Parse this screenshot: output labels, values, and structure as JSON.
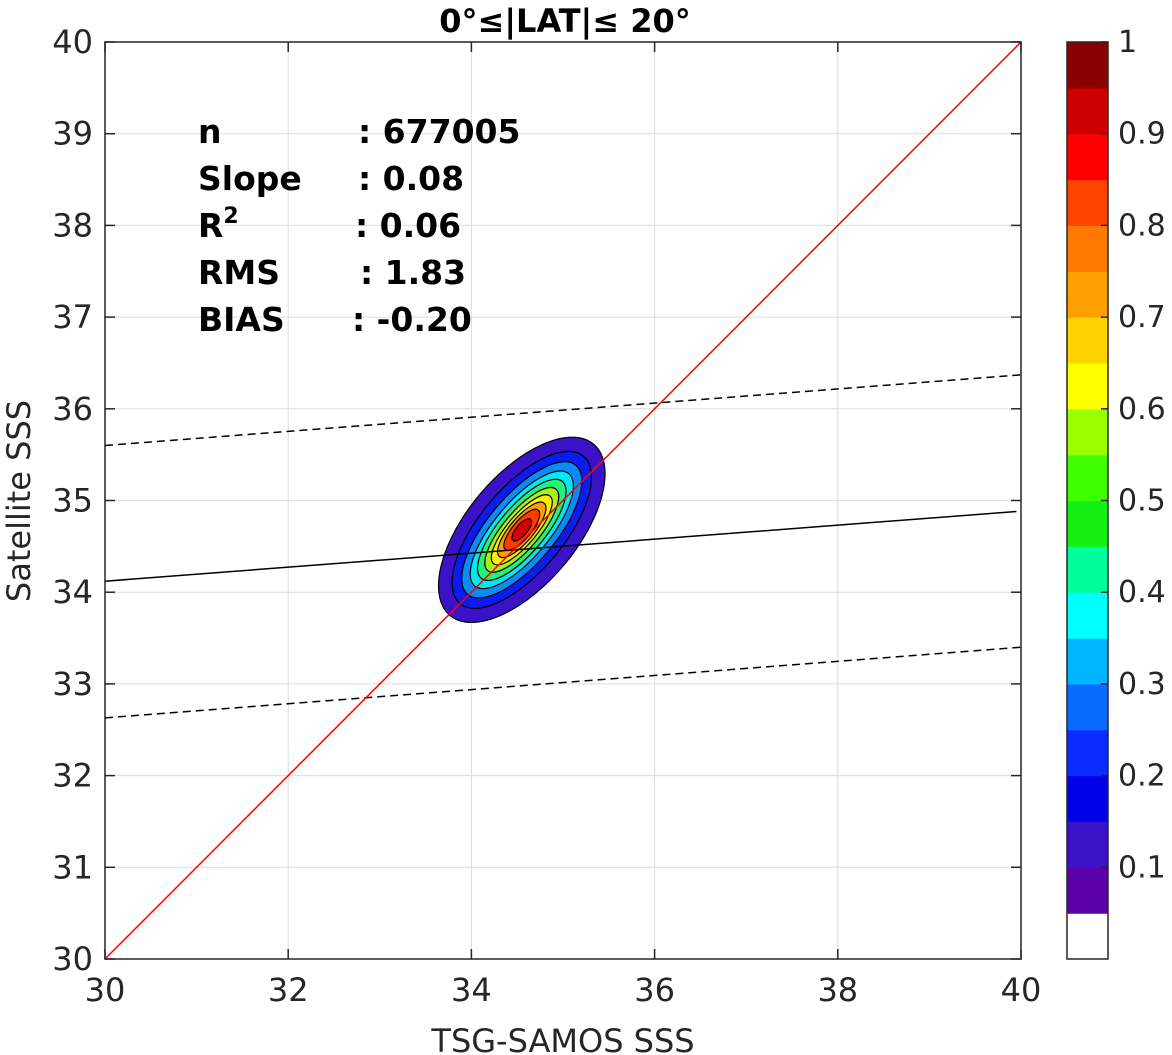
{
  "chart_data": {
    "type": "contour",
    "title": "0°≤|LAT|≤ 20°",
    "xlabel": "TSG-SAMOS SSS",
    "ylabel": "Satellite SSS",
    "xlim": [
      30,
      40
    ],
    "ylim": [
      30,
      40
    ],
    "xticks": [
      "30",
      "32",
      "34",
      "36",
      "38",
      "40"
    ],
    "yticks": [
      "30",
      "31",
      "32",
      "33",
      "34",
      "35",
      "36",
      "37",
      "38",
      "39",
      "40"
    ],
    "grid": true,
    "stats": [
      {
        "label": "n",
        "value": ": 677005"
      },
      {
        "label": "Slope",
        "value": ": 0.08"
      },
      {
        "label": "R",
        "sup": "2",
        "value": ": 0.06"
      },
      {
        "label": "RMS",
        "value": ": 1.83"
      },
      {
        "label": "BIAS",
        "value": ": -0.20"
      }
    ],
    "lines": {
      "one_to_one": {
        "x": [
          30,
          40
        ],
        "y": [
          30,
          40
        ],
        "color": "#ff0000"
      },
      "fit": {
        "x": [
          30,
          39.95
        ],
        "y": [
          34.12,
          34.88
        ],
        "color": "#000000"
      },
      "upper_bound": {
        "x": [
          30,
          40
        ],
        "y": [
          35.6,
          36.37
        ],
        "color": "#000000",
        "dash": true
      },
      "lower_bound": {
        "x": [
          30,
          40
        ],
        "y": [
          32.63,
          33.4
        ],
        "color": "#000000",
        "dash": true
      }
    },
    "density": {
      "center": [
        34.55,
        34.68
      ],
      "rotation_deg": 50,
      "levels": [
        {
          "level": 0.05,
          "color": "#3a12c8",
          "rx": 1.22,
          "ry": 0.6
        },
        {
          "level": 0.15,
          "color": "#0a1cf0",
          "rx": 1.05,
          "ry": 0.46
        },
        {
          "level": 0.25,
          "color": "#0a8cf8",
          "rx": 0.92,
          "ry": 0.37
        },
        {
          "level": 0.35,
          "color": "#00e8f0",
          "rx": 0.8,
          "ry": 0.3
        },
        {
          "level": 0.45,
          "color": "#26f07a",
          "rx": 0.69,
          "ry": 0.25
        },
        {
          "level": 0.55,
          "color": "#a8f01a",
          "rx": 0.58,
          "ry": 0.2
        },
        {
          "level": 0.65,
          "color": "#fff200",
          "rx": 0.48,
          "ry": 0.16
        },
        {
          "level": 0.75,
          "color": "#ffa000",
          "rx": 0.38,
          "ry": 0.13
        },
        {
          "level": 0.85,
          "color": "#ff3c00",
          "rx": 0.28,
          "ry": 0.1
        },
        {
          "level": 0.95,
          "color": "#d80000",
          "rx": 0.15,
          "ry": 0.06
        }
      ]
    },
    "colorbar": {
      "range": [
        0,
        1
      ],
      "ticks": [
        "0.1",
        "0.2",
        "0.3",
        "0.4",
        "0.5",
        "0.6",
        "0.7",
        "0.8",
        "0.9",
        "1"
      ],
      "colors": [
        "#ffffff",
        "#5c00a8",
        "#3a12c8",
        "#0000e8",
        "#0a2cff",
        "#0a6cff",
        "#00b4ff",
        "#00ffff",
        "#00ff9c",
        "#14f014",
        "#3cff00",
        "#9cff00",
        "#ffff00",
        "#ffd200",
        "#ffa000",
        "#ff7800",
        "#ff4400",
        "#ff0000",
        "#cc0000",
        "#8a0000"
      ]
    }
  }
}
